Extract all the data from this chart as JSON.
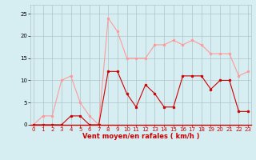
{
  "x": [
    0,
    1,
    2,
    3,
    4,
    5,
    6,
    7,
    8,
    9,
    10,
    11,
    12,
    13,
    14,
    15,
    16,
    17,
    18,
    19,
    20,
    21,
    22,
    23
  ],
  "mean_wind": [
    0,
    0,
    0,
    0,
    2,
    2,
    0,
    0,
    12,
    12,
    7,
    4,
    9,
    7,
    4,
    4,
    11,
    11,
    11,
    8,
    10,
    10,
    3,
    3
  ],
  "gust_wind": [
    0,
    2,
    2,
    10,
    11,
    5,
    2,
    0,
    24,
    21,
    15,
    15,
    15,
    18,
    18,
    19,
    18,
    19,
    18,
    16,
    16,
    16,
    11,
    12
  ],
  "bg_color": "#d6eef2",
  "grid_color": "#b0c4c8",
  "mean_color": "#cc0000",
  "gust_color": "#ff9999",
  "xlabel": "Vent moyen/en rafales ( km/h )",
  "xlabel_color": "#cc0000",
  "yticks": [
    0,
    5,
    10,
    15,
    20,
    25
  ],
  "xticks": [
    0,
    1,
    2,
    3,
    4,
    5,
    6,
    7,
    8,
    9,
    10,
    11,
    12,
    13,
    14,
    15,
    16,
    17,
    18,
    19,
    20,
    21,
    22,
    23
  ],
  "ylim": [
    0,
    27
  ],
  "xlim": [
    -0.3,
    23.3
  ],
  "tick_fontsize": 5.0,
  "xlabel_fontsize": 6.0,
  "linewidth": 0.8,
  "markersize": 2.0
}
